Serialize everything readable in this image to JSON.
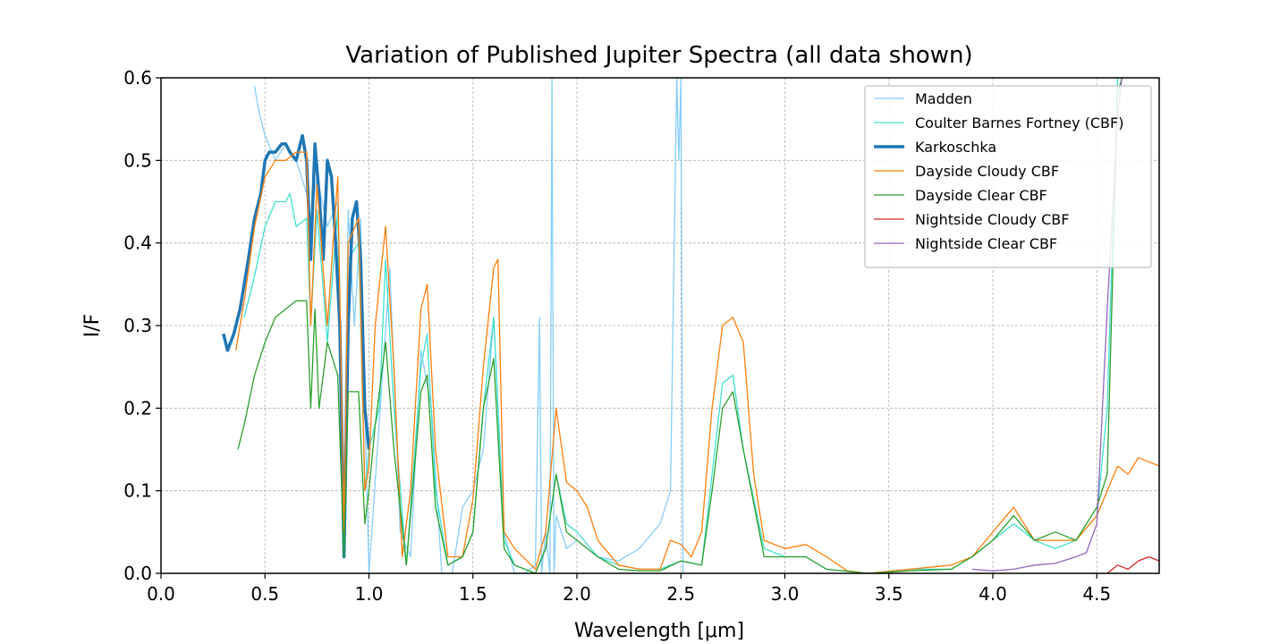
{
  "chart_data": {
    "type": "line",
    "title": "Variation of Published Jupiter Spectra (all data shown)",
    "xlabel": "Wavelength [μm]",
    "ylabel": "I/F",
    "xlim": [
      0.0,
      4.8
    ],
    "ylim": [
      0.0,
      0.6
    ],
    "xticks": [
      "0.0",
      "0.5",
      "1.0",
      "1.5",
      "2.0",
      "2.5",
      "3.0",
      "3.5",
      "4.0",
      "4.5"
    ],
    "yticks": [
      "0.0",
      "0.1",
      "0.2",
      "0.3",
      "0.4",
      "0.5",
      "0.6"
    ],
    "grid": true,
    "legend_position": "top-right",
    "series": [
      {
        "name": "Madden",
        "color": "#87cefa",
        "width": 1.3,
        "x": [
          0.45,
          0.47,
          0.5,
          0.55,
          0.6,
          0.65,
          0.7,
          0.72,
          0.75,
          0.8,
          0.85,
          0.88,
          0.9,
          0.93,
          0.96,
          0.98,
          1.0,
          1.0,
          1.1,
          1.15,
          1.2,
          1.25,
          1.3,
          1.35,
          1.4,
          1.45,
          1.5,
          1.55,
          1.6,
          1.65,
          1.7,
          1.75,
          1.8,
          1.82,
          1.83,
          1.85,
          1.87,
          1.88,
          1.89,
          1.9,
          1.95,
          2.0,
          2.1,
          2.2,
          2.3,
          2.4,
          2.45,
          2.48,
          2.49,
          2.5,
          2.51,
          2.55,
          2.6
        ],
        "y": [
          0.59,
          0.56,
          0.53,
          0.5,
          0.52,
          0.5,
          0.46,
          0.43,
          0.48,
          0.42,
          0.45,
          0.1,
          0.44,
          0.3,
          0.43,
          0.2,
          0.0,
          0.0,
          0.37,
          0.05,
          0.02,
          0.27,
          0.2,
          0.0,
          0.0,
          0.08,
          0.1,
          0.15,
          0.31,
          0.05,
          0.0,
          0.0,
          0.01,
          0.31,
          0.0,
          0.05,
          0.0,
          0.6,
          0.0,
          0.07,
          0.03,
          0.04,
          0.02,
          0.015,
          0.03,
          0.06,
          0.1,
          0.6,
          0.5,
          0.6,
          0.0,
          0.0,
          0.0
        ]
      },
      {
        "name": "Coulter Barnes Fortney (CBF)",
        "color": "#40e0d0",
        "width": 1.3,
        "x": [
          0.4,
          0.45,
          0.5,
          0.55,
          0.6,
          0.62,
          0.65,
          0.7,
          0.72,
          0.75,
          0.8,
          0.85,
          0.88,
          0.9,
          0.95,
          0.98,
          1.0,
          1.05,
          1.08,
          1.12,
          1.18,
          1.25,
          1.28,
          1.32,
          1.38,
          1.45,
          1.5,
          1.55,
          1.6,
          1.65,
          1.7,
          1.8,
          1.85,
          1.9,
          1.95,
          2.0,
          2.1,
          2.2,
          2.3,
          2.4,
          2.5,
          2.6,
          2.65,
          2.7,
          2.75,
          2.8,
          2.9,
          3.0,
          3.1,
          3.2,
          3.4,
          3.6,
          3.8,
          3.9,
          4.0,
          4.1,
          4.2,
          4.3,
          4.4,
          4.5,
          4.55,
          4.6,
          4.62
        ],
        "y": [
          0.31,
          0.36,
          0.42,
          0.45,
          0.45,
          0.46,
          0.42,
          0.43,
          0.3,
          0.44,
          0.28,
          0.44,
          0.06,
          0.38,
          0.4,
          0.1,
          0.15,
          0.2,
          0.38,
          0.2,
          0.01,
          0.25,
          0.29,
          0.1,
          0.01,
          0.02,
          0.05,
          0.2,
          0.31,
          0.04,
          0.01,
          0.0,
          0.03,
          0.12,
          0.06,
          0.05,
          0.02,
          0.01,
          0.005,
          0.005,
          0.015,
          0.01,
          0.12,
          0.23,
          0.24,
          0.15,
          0.03,
          0.02,
          0.02,
          0.005,
          0.0,
          0.005,
          0.005,
          0.02,
          0.04,
          0.06,
          0.04,
          0.03,
          0.04,
          0.07,
          0.2,
          0.6,
          0.6
        ]
      },
      {
        "name": "Karkoschka",
        "color": "#1f77b4",
        "width": 3.5,
        "x": [
          0.3,
          0.32,
          0.35,
          0.38,
          0.4,
          0.42,
          0.45,
          0.48,
          0.5,
          0.52,
          0.55,
          0.58,
          0.6,
          0.62,
          0.65,
          0.68,
          0.7,
          0.72,
          0.74,
          0.76,
          0.78,
          0.8,
          0.82,
          0.84,
          0.86,
          0.88,
          0.9,
          0.92,
          0.94,
          0.96,
          0.98,
          1.0
        ],
        "y": [
          0.29,
          0.27,
          0.29,
          0.32,
          0.35,
          0.38,
          0.43,
          0.46,
          0.5,
          0.51,
          0.51,
          0.52,
          0.52,
          0.51,
          0.5,
          0.53,
          0.5,
          0.38,
          0.52,
          0.46,
          0.38,
          0.5,
          0.48,
          0.4,
          0.3,
          0.02,
          0.3,
          0.43,
          0.45,
          0.38,
          0.2,
          0.15
        ]
      },
      {
        "name": "Dayside Cloudy CBF",
        "color": "#ff7f0e",
        "width": 1.3,
        "x": [
          0.36,
          0.4,
          0.45,
          0.5,
          0.55,
          0.6,
          0.65,
          0.7,
          0.72,
          0.75,
          0.8,
          0.85,
          0.88,
          0.9,
          0.95,
          0.98,
          1.0,
          1.03,
          1.08,
          1.12,
          1.16,
          1.2,
          1.25,
          1.28,
          1.32,
          1.38,
          1.45,
          1.5,
          1.55,
          1.6,
          1.62,
          1.65,
          1.7,
          1.8,
          1.85,
          1.9,
          1.95,
          2.0,
          2.05,
          2.1,
          2.2,
          2.3,
          2.4,
          2.45,
          2.5,
          2.55,
          2.6,
          2.65,
          2.7,
          2.75,
          2.8,
          2.85,
          2.9,
          3.0,
          3.1,
          3.2,
          3.3,
          3.4,
          3.6,
          3.8,
          3.9,
          4.0,
          4.1,
          4.2,
          4.3,
          4.4,
          4.5,
          4.55,
          4.6,
          4.65,
          4.7,
          4.8
        ],
        "y": [
          0.27,
          0.33,
          0.42,
          0.48,
          0.5,
          0.5,
          0.51,
          0.51,
          0.3,
          0.47,
          0.3,
          0.48,
          0.05,
          0.4,
          0.43,
          0.1,
          0.13,
          0.3,
          0.42,
          0.25,
          0.02,
          0.1,
          0.32,
          0.35,
          0.15,
          0.02,
          0.02,
          0.09,
          0.25,
          0.37,
          0.38,
          0.05,
          0.03,
          0.005,
          0.05,
          0.2,
          0.11,
          0.1,
          0.08,
          0.04,
          0.01,
          0.005,
          0.005,
          0.04,
          0.035,
          0.02,
          0.05,
          0.2,
          0.3,
          0.31,
          0.28,
          0.12,
          0.04,
          0.03,
          0.035,
          0.02,
          0.003,
          0.0,
          0.005,
          0.01,
          0.02,
          0.05,
          0.08,
          0.04,
          0.04,
          0.04,
          0.07,
          0.1,
          0.13,
          0.12,
          0.14,
          0.13
        ]
      },
      {
        "name": "Dayside Clear CBF",
        "color": "#2ca02c",
        "width": 1.3,
        "x": [
          0.37,
          0.4,
          0.45,
          0.5,
          0.55,
          0.6,
          0.65,
          0.7,
          0.72,
          0.74,
          0.76,
          0.8,
          0.85,
          0.88,
          0.9,
          0.95,
          0.98,
          1.0,
          1.03,
          1.08,
          1.12,
          1.18,
          1.25,
          1.28,
          1.32,
          1.38,
          1.45,
          1.5,
          1.55,
          1.6,
          1.65,
          1.7,
          1.8,
          1.85,
          1.9,
          1.95,
          2.0,
          2.1,
          2.2,
          2.3,
          2.4,
          2.5,
          2.6,
          2.65,
          2.7,
          2.75,
          2.8,
          2.9,
          3.0,
          3.1,
          3.2,
          3.4,
          3.6,
          3.8,
          3.9,
          4.0,
          4.1,
          4.2,
          4.3,
          4.4,
          4.5,
          4.55,
          4.6,
          4.62
        ],
        "y": [
          0.15,
          0.18,
          0.24,
          0.28,
          0.31,
          0.32,
          0.33,
          0.33,
          0.2,
          0.32,
          0.2,
          0.28,
          0.24,
          0.02,
          0.22,
          0.22,
          0.06,
          0.1,
          0.18,
          0.28,
          0.15,
          0.01,
          0.22,
          0.24,
          0.08,
          0.01,
          0.02,
          0.05,
          0.2,
          0.26,
          0.03,
          0.01,
          0.0,
          0.03,
          0.12,
          0.05,
          0.04,
          0.02,
          0.005,
          0.003,
          0.003,
          0.015,
          0.01,
          0.1,
          0.2,
          0.22,
          0.15,
          0.02,
          0.02,
          0.02,
          0.005,
          0.0,
          0.003,
          0.005,
          0.02,
          0.04,
          0.07,
          0.04,
          0.05,
          0.04,
          0.08,
          0.12,
          0.58,
          0.6
        ]
      },
      {
        "name": "Nightside Cloudy CBF",
        "color": "#d62728",
        "width": 1.3,
        "x": [
          4.55,
          4.6,
          4.65,
          4.7,
          4.75,
          4.8
        ],
        "y": [
          0.0,
          0.01,
          0.005,
          0.015,
          0.02,
          0.015
        ]
      },
      {
        "name": "Nightside Clear CBF",
        "color": "#9467bd",
        "width": 1.3,
        "x": [
          3.9,
          4.0,
          4.1,
          4.2,
          4.3,
          4.4,
          4.45,
          4.5,
          4.55,
          4.6,
          4.62
        ],
        "y": [
          0.005,
          0.003,
          0.005,
          0.01,
          0.012,
          0.02,
          0.025,
          0.06,
          0.32,
          0.55,
          0.6
        ]
      }
    ]
  }
}
